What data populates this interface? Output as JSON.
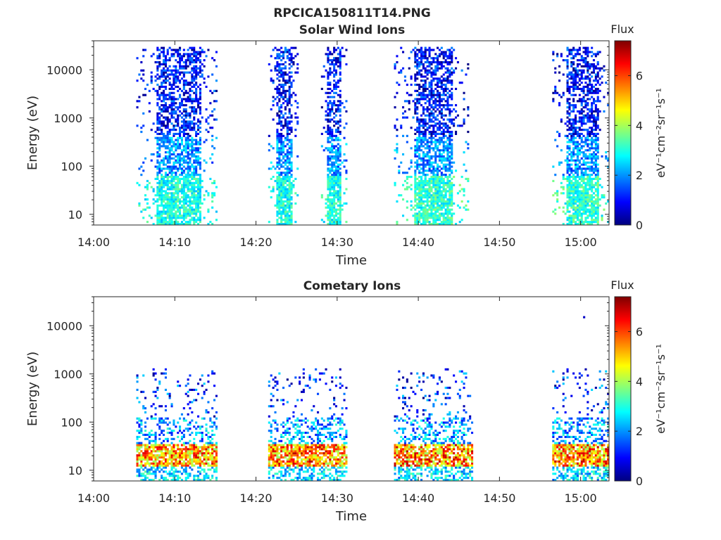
{
  "figure_title": "RPCICA150811T14.PNG",
  "chart_data": [
    {
      "type": "heatmap",
      "title": "Solar Wind Ions",
      "xlabel": "Time",
      "ylabel": "Energy (eV)",
      "x_ticks": [
        "14:00",
        "14:10",
        "14:20",
        "14:30",
        "14:40",
        "14:50",
        "15:00"
      ],
      "x_range_min": [
        0,
        63.5
      ],
      "y_scale": "log",
      "y_ticks": [
        10,
        100,
        1000,
        10000
      ],
      "y_tick_labels": [
        "10",
        "100",
        "1000",
        "10000"
      ],
      "ylim": [
        6,
        40000
      ],
      "colorbar": {
        "label": "Flux",
        "units": "eV⁻¹cm⁻²sr⁻¹s⁻¹",
        "ticks": [
          0,
          2,
          4,
          6
        ],
        "range": [
          0,
          7.4
        ],
        "colormap": "jet"
      },
      "colormap_stops": [
        "#00007f",
        "#0000ff",
        "#007fff",
        "#00ffff",
        "#7fff7f",
        "#ffff00",
        "#ff7f00",
        "#ff0000",
        "#7f0000"
      ],
      "bursts": [
        {
          "range_min": [
            5.2,
            15
          ],
          "dense_energy_eV": [
            8,
            30000
          ],
          "low_energy_flux": 3.0
        },
        {
          "range_min": [
            21.5,
            25
          ],
          "dense_energy_eV": [
            8,
            30000
          ],
          "low_energy_flux": 3.0
        },
        {
          "range_min": [
            27.8,
            31
          ],
          "dense_energy_eV": [
            8,
            30000
          ],
          "low_energy_flux": 3.0
        },
        {
          "range_min": [
            37,
            46
          ],
          "dense_energy_eV": [
            8,
            30000
          ],
          "low_energy_flux": 3.2
        },
        {
          "range_min": [
            56.3,
            63.5
          ],
          "dense_energy_eV": [
            8,
            30000
          ],
          "low_energy_flux": 3.2
        }
      ],
      "grid": false
    },
    {
      "type": "heatmap",
      "title": "Cometary Ions",
      "xlabel": "Time",
      "ylabel": "Energy (eV)",
      "x_ticks": [
        "14:00",
        "14:10",
        "14:20",
        "14:30",
        "14:40",
        "14:50",
        "15:00"
      ],
      "x_range_min": [
        0,
        63.5
      ],
      "y_scale": "log",
      "y_ticks": [
        10,
        100,
        1000,
        10000
      ],
      "y_tick_labels": [
        "10",
        "100",
        "1000",
        "10000"
      ],
      "ylim": [
        6,
        40000
      ],
      "colorbar": {
        "label": "Flux",
        "units": "eV⁻¹cm⁻²sr⁻¹s⁻¹",
        "ticks": [
          0,
          2,
          4,
          6
        ],
        "range": [
          0,
          7.4
        ],
        "colormap": "jet"
      },
      "colormap_stops": [
        "#00007f",
        "#0000ff",
        "#007fff",
        "#00ffff",
        "#7fff7f",
        "#ffff00",
        "#ff7f00",
        "#ff0000",
        "#7f0000"
      ],
      "bursts": [
        {
          "range_min": [
            5.2,
            15
          ],
          "peak_energy_eV": [
            12,
            35
          ],
          "peak_flux": 6.8
        },
        {
          "range_min": [
            21.5,
            31
          ],
          "peak_energy_eV": [
            12,
            35
          ],
          "peak_flux": 7.0
        },
        {
          "range_min": [
            37,
            46.5
          ],
          "peak_energy_eV": [
            12,
            35
          ],
          "peak_flux": 7.0
        },
        {
          "range_min": [
            56.3,
            63.5
          ],
          "peak_energy_eV": [
            12,
            35
          ],
          "peak_flux": 6.9
        }
      ],
      "isolated_points": [
        {
          "time_min": 60.3,
          "energy_eV": 15000,
          "flux": 0.5
        }
      ],
      "grid": false
    }
  ]
}
